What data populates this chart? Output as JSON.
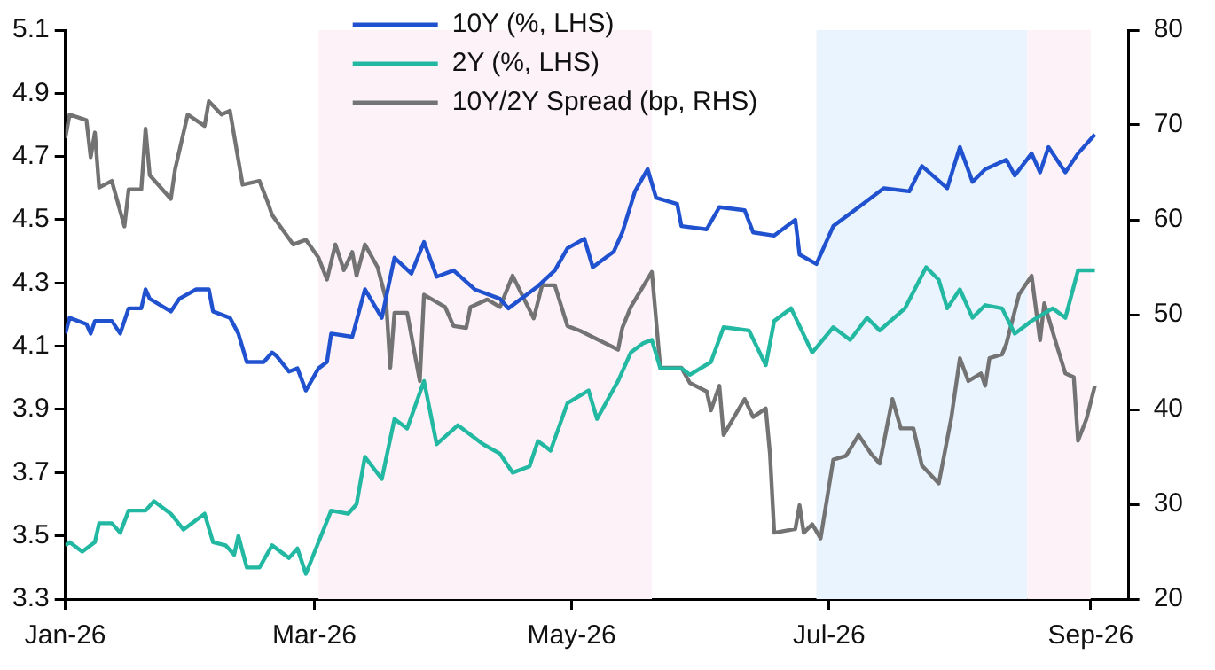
{
  "chart_data": {
    "type": "line",
    "xlim": [
      "2026-01-01",
      "2026-09-10"
    ],
    "xticks": [
      {
        "value": "2026-01-01",
        "label": "Jan-26"
      },
      {
        "value": "2026-03-01",
        "label": "Mar-26"
      },
      {
        "value": "2026-05-01",
        "label": "May-26"
      },
      {
        "value": "2026-07-01",
        "label": "Jul-26"
      },
      {
        "value": "2026-09-01",
        "label": "Sep-26"
      }
    ],
    "ylim": [
      3.3,
      5.1
    ],
    "yticks": [
      {
        "value": 3.3,
        "label": "3.3"
      },
      {
        "value": 3.5,
        "label": "3.5"
      },
      {
        "value": 3.7,
        "label": "3.7"
      },
      {
        "value": 3.9,
        "label": "3.9"
      },
      {
        "value": 4.1,
        "label": "4.1"
      },
      {
        "value": 4.3,
        "label": "4.3"
      },
      {
        "value": 4.5,
        "label": "4.5"
      },
      {
        "value": 4.7,
        "label": "4.7"
      },
      {
        "value": 4.9,
        "label": "4.9"
      },
      {
        "value": 5.1,
        "label": "5.1"
      }
    ],
    "y2lim": [
      20,
      80
    ],
    "y2ticks": [
      20,
      30,
      40,
      50,
      60,
      70,
      80
    ],
    "grid": false,
    "legend": "top",
    "marker": "none",
    "line_style": "solid",
    "bands": [
      {
        "axis": "x",
        "from": "2026-03-02",
        "to": "2026-05-20",
        "color": "#fdf2f8"
      },
      {
        "axis": "x",
        "from": "2026-06-28",
        "to": "2026-08-17",
        "color": "#eaf4fe"
      },
      {
        "axis": "x",
        "from": "2026-08-17",
        "to": "2026-09-01",
        "color": "#fdf2f8"
      }
    ],
    "series": [
      {
        "name": "10Y (%, LHS)",
        "color": "#2052d0",
        "x": [
          "2026-01-01",
          "2026-01-02",
          "2026-01-06",
          "2026-01-07",
          "2026-01-08",
          "2026-01-12",
          "2026-01-14",
          "2026-01-16",
          "2026-01-19",
          "2026-01-20",
          "2026-01-21",
          "2026-01-26",
          "2026-01-28",
          "2026-02-01",
          "2026-02-04",
          "2026-02-05",
          "2026-02-09",
          "2026-02-11",
          "2026-02-13",
          "2026-02-17",
          "2026-02-19",
          "2026-02-20",
          "2026-02-23",
          "2026-02-25",
          "2026-02-27",
          "2026-03-02",
          "2026-03-04",
          "2026-03-05",
          "2026-03-10",
          "2026-03-13",
          "2026-03-17",
          "2026-03-20",
          "2026-03-24",
          "2026-03-27",
          "2026-03-30",
          "2026-04-03",
          "2026-04-08",
          "2026-04-14",
          "2026-04-16",
          "2026-04-23",
          "2026-04-27",
          "2026-04-30",
          "2026-05-04",
          "2026-05-06",
          "2026-05-11",
          "2026-05-13",
          "2026-05-16",
          "2026-05-19",
          "2026-05-21",
          "2026-05-26",
          "2026-05-27",
          "2026-06-02",
          "2026-06-05",
          "2026-06-11",
          "2026-06-13",
          "2026-06-18",
          "2026-06-23",
          "2026-06-24",
          "2026-06-28",
          "2026-07-02",
          "2026-07-09",
          "2026-07-14",
          "2026-07-20",
          "2026-07-23",
          "2026-07-29",
          "2026-08-01",
          "2026-08-04",
          "2026-08-07",
          "2026-08-12",
          "2026-08-14",
          "2026-08-18",
          "2026-08-20",
          "2026-08-22",
          "2026-08-26",
          "2026-08-29",
          "2026-09-02"
        ],
        "values": [
          4.14,
          4.19,
          4.17,
          4.14,
          4.18,
          4.18,
          4.14,
          4.22,
          4.22,
          4.28,
          4.25,
          4.21,
          4.25,
          4.28,
          4.28,
          4.21,
          4.19,
          4.14,
          4.05,
          4.05,
          4.08,
          4.07,
          4.02,
          4.03,
          3.96,
          4.03,
          4.05,
          4.14,
          4.13,
          4.28,
          4.19,
          4.38,
          4.33,
          4.43,
          4.32,
          4.34,
          4.28,
          4.25,
          4.22,
          4.29,
          4.34,
          4.41,
          4.44,
          4.35,
          4.4,
          4.46,
          4.59,
          4.66,
          4.57,
          4.55,
          4.48,
          4.47,
          4.54,
          4.53,
          4.46,
          4.45,
          4.5,
          4.39,
          4.36,
          4.48,
          4.55,
          4.6,
          4.59,
          4.67,
          4.6,
          4.73,
          4.62,
          4.66,
          4.69,
          4.64,
          4.71,
          4.65,
          4.73,
          4.65,
          4.71,
          4.77
        ]
      },
      {
        "name": "2Y (%, LHS)",
        "color": "#22b8a2",
        "x": [
          "2026-01-01",
          "2026-01-02",
          "2026-01-05",
          "2026-01-08",
          "2026-01-09",
          "2026-01-12",
          "2026-01-14",
          "2026-01-16",
          "2026-01-20",
          "2026-01-22",
          "2026-01-26",
          "2026-01-29",
          "2026-02-03",
          "2026-02-05",
          "2026-02-08",
          "2026-02-10",
          "2026-02-11",
          "2026-02-13",
          "2026-02-16",
          "2026-02-19",
          "2026-02-23",
          "2026-02-25",
          "2026-02-27",
          "2026-03-02",
          "2026-03-05",
          "2026-03-09",
          "2026-03-11",
          "2026-03-13",
          "2026-03-17",
          "2026-03-20",
          "2026-03-23",
          "2026-03-27",
          "2026-03-30",
          "2026-04-04",
          "2026-04-10",
          "2026-04-14",
          "2026-04-17",
          "2026-04-21",
          "2026-04-23",
          "2026-04-26",
          "2026-04-30",
          "2026-05-05",
          "2026-05-07",
          "2026-05-12",
          "2026-05-15",
          "2026-05-18",
          "2026-05-20",
          "2026-05-22",
          "2026-05-27",
          "2026-05-29",
          "2026-06-03",
          "2026-06-06",
          "2026-06-12",
          "2026-06-16",
          "2026-06-18",
          "2026-06-22",
          "2026-06-27",
          "2026-07-02",
          "2026-07-06",
          "2026-07-10",
          "2026-07-13",
          "2026-07-19",
          "2026-07-24",
          "2026-07-27",
          "2026-07-29",
          "2026-08-01",
          "2026-08-04",
          "2026-08-07",
          "2026-08-11",
          "2026-08-14",
          "2026-08-18",
          "2026-08-23",
          "2026-08-26",
          "2026-08-29",
          "2026-09-02"
        ],
        "values": [
          3.47,
          3.48,
          3.45,
          3.48,
          3.54,
          3.54,
          3.51,
          3.58,
          3.58,
          3.61,
          3.57,
          3.52,
          3.57,
          3.48,
          3.47,
          3.44,
          3.5,
          3.4,
          3.4,
          3.47,
          3.43,
          3.46,
          3.38,
          3.48,
          3.58,
          3.57,
          3.6,
          3.75,
          3.68,
          3.87,
          3.84,
          3.99,
          3.79,
          3.85,
          3.79,
          3.76,
          3.7,
          3.72,
          3.8,
          3.77,
          3.92,
          3.96,
          3.87,
          3.99,
          4.08,
          4.11,
          4.12,
          4.03,
          4.03,
          4.01,
          4.05,
          4.16,
          4.15,
          4.04,
          4.18,
          4.22,
          4.08,
          4.16,
          4.12,
          4.19,
          4.15,
          4.22,
          4.35,
          4.31,
          4.22,
          4.28,
          4.19,
          4.23,
          4.22,
          4.14,
          4.18,
          4.22,
          4.19,
          4.34,
          4.34
        ]
      },
      {
        "name": "10Y/2Y Spread (bp, RHS)",
        "color": "#737373",
        "axis": "y2",
        "x": [
          "2026-01-01",
          "2026-01-02",
          "2026-01-06",
          "2026-01-07",
          "2026-01-08",
          "2026-01-09",
          "2026-01-12",
          "2026-01-15",
          "2026-01-16",
          "2026-01-19",
          "2026-01-20",
          "2026-01-21",
          "2026-01-26",
          "2026-01-27",
          "2026-01-30",
          "2026-02-03",
          "2026-02-04",
          "2026-02-07",
          "2026-02-09",
          "2026-02-12",
          "2026-02-16",
          "2026-02-18",
          "2026-02-19",
          "2026-02-24",
          "2026-02-27",
          "2026-03-02",
          "2026-03-04",
          "2026-03-06",
          "2026-03-08",
          "2026-03-10",
          "2026-03-11",
          "2026-03-13",
          "2026-03-16",
          "2026-03-18",
          "2026-03-19",
          "2026-03-20",
          "2026-03-23",
          "2026-03-26",
          "2026-03-27",
          "2026-04-01",
          "2026-04-03",
          "2026-04-06",
          "2026-04-07",
          "2026-04-11",
          "2026-04-14",
          "2026-04-17",
          "2026-04-22",
          "2026-04-24",
          "2026-04-27",
          "2026-04-30",
          "2026-05-03",
          "2026-05-12",
          "2026-05-13",
          "2026-05-15",
          "2026-05-20",
          "2026-05-22",
          "2026-05-27",
          "2026-05-29",
          "2026-06-02",
          "2026-06-03",
          "2026-06-05",
          "2026-06-06",
          "2026-06-09",
          "2026-06-11",
          "2026-06-13",
          "2026-06-16",
          "2026-06-17",
          "2026-06-18",
          "2026-06-23",
          "2026-06-24",
          "2026-06-25",
          "2026-06-27",
          "2026-06-29",
          "2026-07-02",
          "2026-07-05",
          "2026-07-08",
          "2026-07-11",
          "2026-07-13",
          "2026-07-16",
          "2026-07-18",
          "2026-07-21",
          "2026-07-23",
          "2026-07-27",
          "2026-07-30",
          "2026-08-01",
          "2026-08-03",
          "2026-08-06",
          "2026-08-07",
          "2026-08-08",
          "2026-08-11",
          "2026-08-12",
          "2026-08-15",
          "2026-08-18",
          "2026-08-20",
          "2026-08-21",
          "2026-08-24",
          "2026-08-26",
          "2026-08-28",
          "2026-08-29",
          "2026-08-31",
          "2026-09-02"
        ],
        "values": [
          68.6,
          71.1,
          70.5,
          66.6,
          69.2,
          63.4,
          64.1,
          59.3,
          63.2,
          63.2,
          69.6,
          64.7,
          62.2,
          65.3,
          71.1,
          69.9,
          72.5,
          71.1,
          71.5,
          63.7,
          64.1,
          61.8,
          60.5,
          57.4,
          57.9,
          56.0,
          53.7,
          57.4,
          54.7,
          56.6,
          54.1,
          57.4,
          55.0,
          51.6,
          44.4,
          50.2,
          50.2,
          43.0,
          52.1,
          50.8,
          48.8,
          48.6,
          50.8,
          51.6,
          50.8,
          54.1,
          49.6,
          53.1,
          53.1,
          48.8,
          48.3,
          46.3,
          48.6,
          50.8,
          54.5,
          44.4,
          44.4,
          42.8,
          41.9,
          39.9,
          42.5,
          37.3,
          39.6,
          41.1,
          39.2,
          40.1,
          35.3,
          27.0,
          27.4,
          29.9,
          27.0,
          27.9,
          26.4,
          34.7,
          35.1,
          37.3,
          35.3,
          34.3,
          41.1,
          38.0,
          38.0,
          34.1,
          32.2,
          39.2,
          45.4,
          43.0,
          43.8,
          42.5,
          45.4,
          45.8,
          46.9,
          52.1,
          54.1,
          47.3,
          51.2,
          46.7,
          43.8,
          43.4,
          36.7,
          39.0,
          42.5
        ]
      }
    ]
  }
}
